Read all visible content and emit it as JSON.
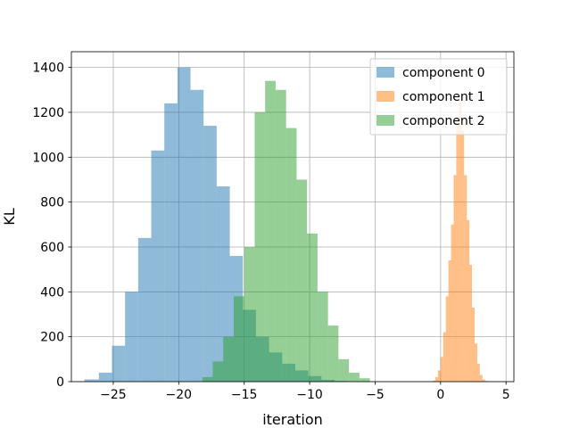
{
  "chart_data": {
    "type": "histogram",
    "xlabel": "iteration",
    "ylabel": "KL",
    "xlim": [
      -28.2,
      5.6
    ],
    "ylim": [
      0,
      1470
    ],
    "xticks": [
      -25,
      -20,
      -15,
      -10,
      -5,
      0,
      5
    ],
    "xtick_labels": [
      "−25",
      "−20",
      "−15",
      "−10",
      "−5",
      "0",
      "5"
    ],
    "yticks": [
      0,
      200,
      400,
      600,
      800,
      1000,
      1200,
      1400
    ],
    "ytick_labels": [
      "0",
      "200",
      "400",
      "600",
      "800",
      "1000",
      "1200",
      "1400"
    ],
    "grid": true,
    "legend_position": "top-right",
    "series": [
      {
        "name": "component 0",
        "color": "#1f77b4",
        "opacity": 0.5,
        "bin_edges": [
          -27.2,
          -26.1,
          -25.1,
          -24.1,
          -23.1,
          -22.1,
          -21.1,
          -20.1,
          -19.1,
          -18.1,
          -17.1,
          -16.1,
          -15.1,
          -14.1,
          -13.1,
          -12.1,
          -11.1,
          -10.1,
          -9.1,
          -8.1,
          -7.1
        ],
        "counts": [
          10,
          40,
          160,
          400,
          640,
          1030,
          1240,
          1400,
          1300,
          1140,
          870,
          560,
          320,
          200,
          130,
          80,
          50,
          25,
          8,
          3
        ]
      },
      {
        "name": "component 1",
        "color": "#ff7f0e",
        "opacity": 0.5,
        "bin_edges": [
          -0.6,
          -0.4,
          -0.2,
          0.0,
          0.2,
          0.4,
          0.6,
          0.8,
          1.0,
          1.2,
          1.4,
          1.6,
          1.8,
          2.0,
          2.2,
          2.4,
          2.6,
          2.8,
          3.0,
          3.2,
          3.4,
          3.6
        ],
        "counts": [
          5,
          20,
          50,
          110,
          220,
          380,
          540,
          700,
          920,
          1150,
          1260,
          1120,
          920,
          720,
          520,
          330,
          170,
          80,
          30,
          10,
          3
        ]
      },
      {
        "name": "component 2",
        "color": "#2ca02c",
        "opacity": 0.5,
        "bin_edges": [
          -18.2,
          -17.4,
          -16.6,
          -15.8,
          -15.0,
          -14.2,
          -13.4,
          -12.6,
          -11.8,
          -11.0,
          -10.2,
          -9.4,
          -8.6,
          -7.8,
          -7.0,
          -6.2,
          -5.4
        ],
        "counts": [
          20,
          90,
          200,
          380,
          600,
          1200,
          1340,
          1300,
          1130,
          900,
          660,
          400,
          250,
          100,
          40,
          15
        ]
      }
    ]
  }
}
